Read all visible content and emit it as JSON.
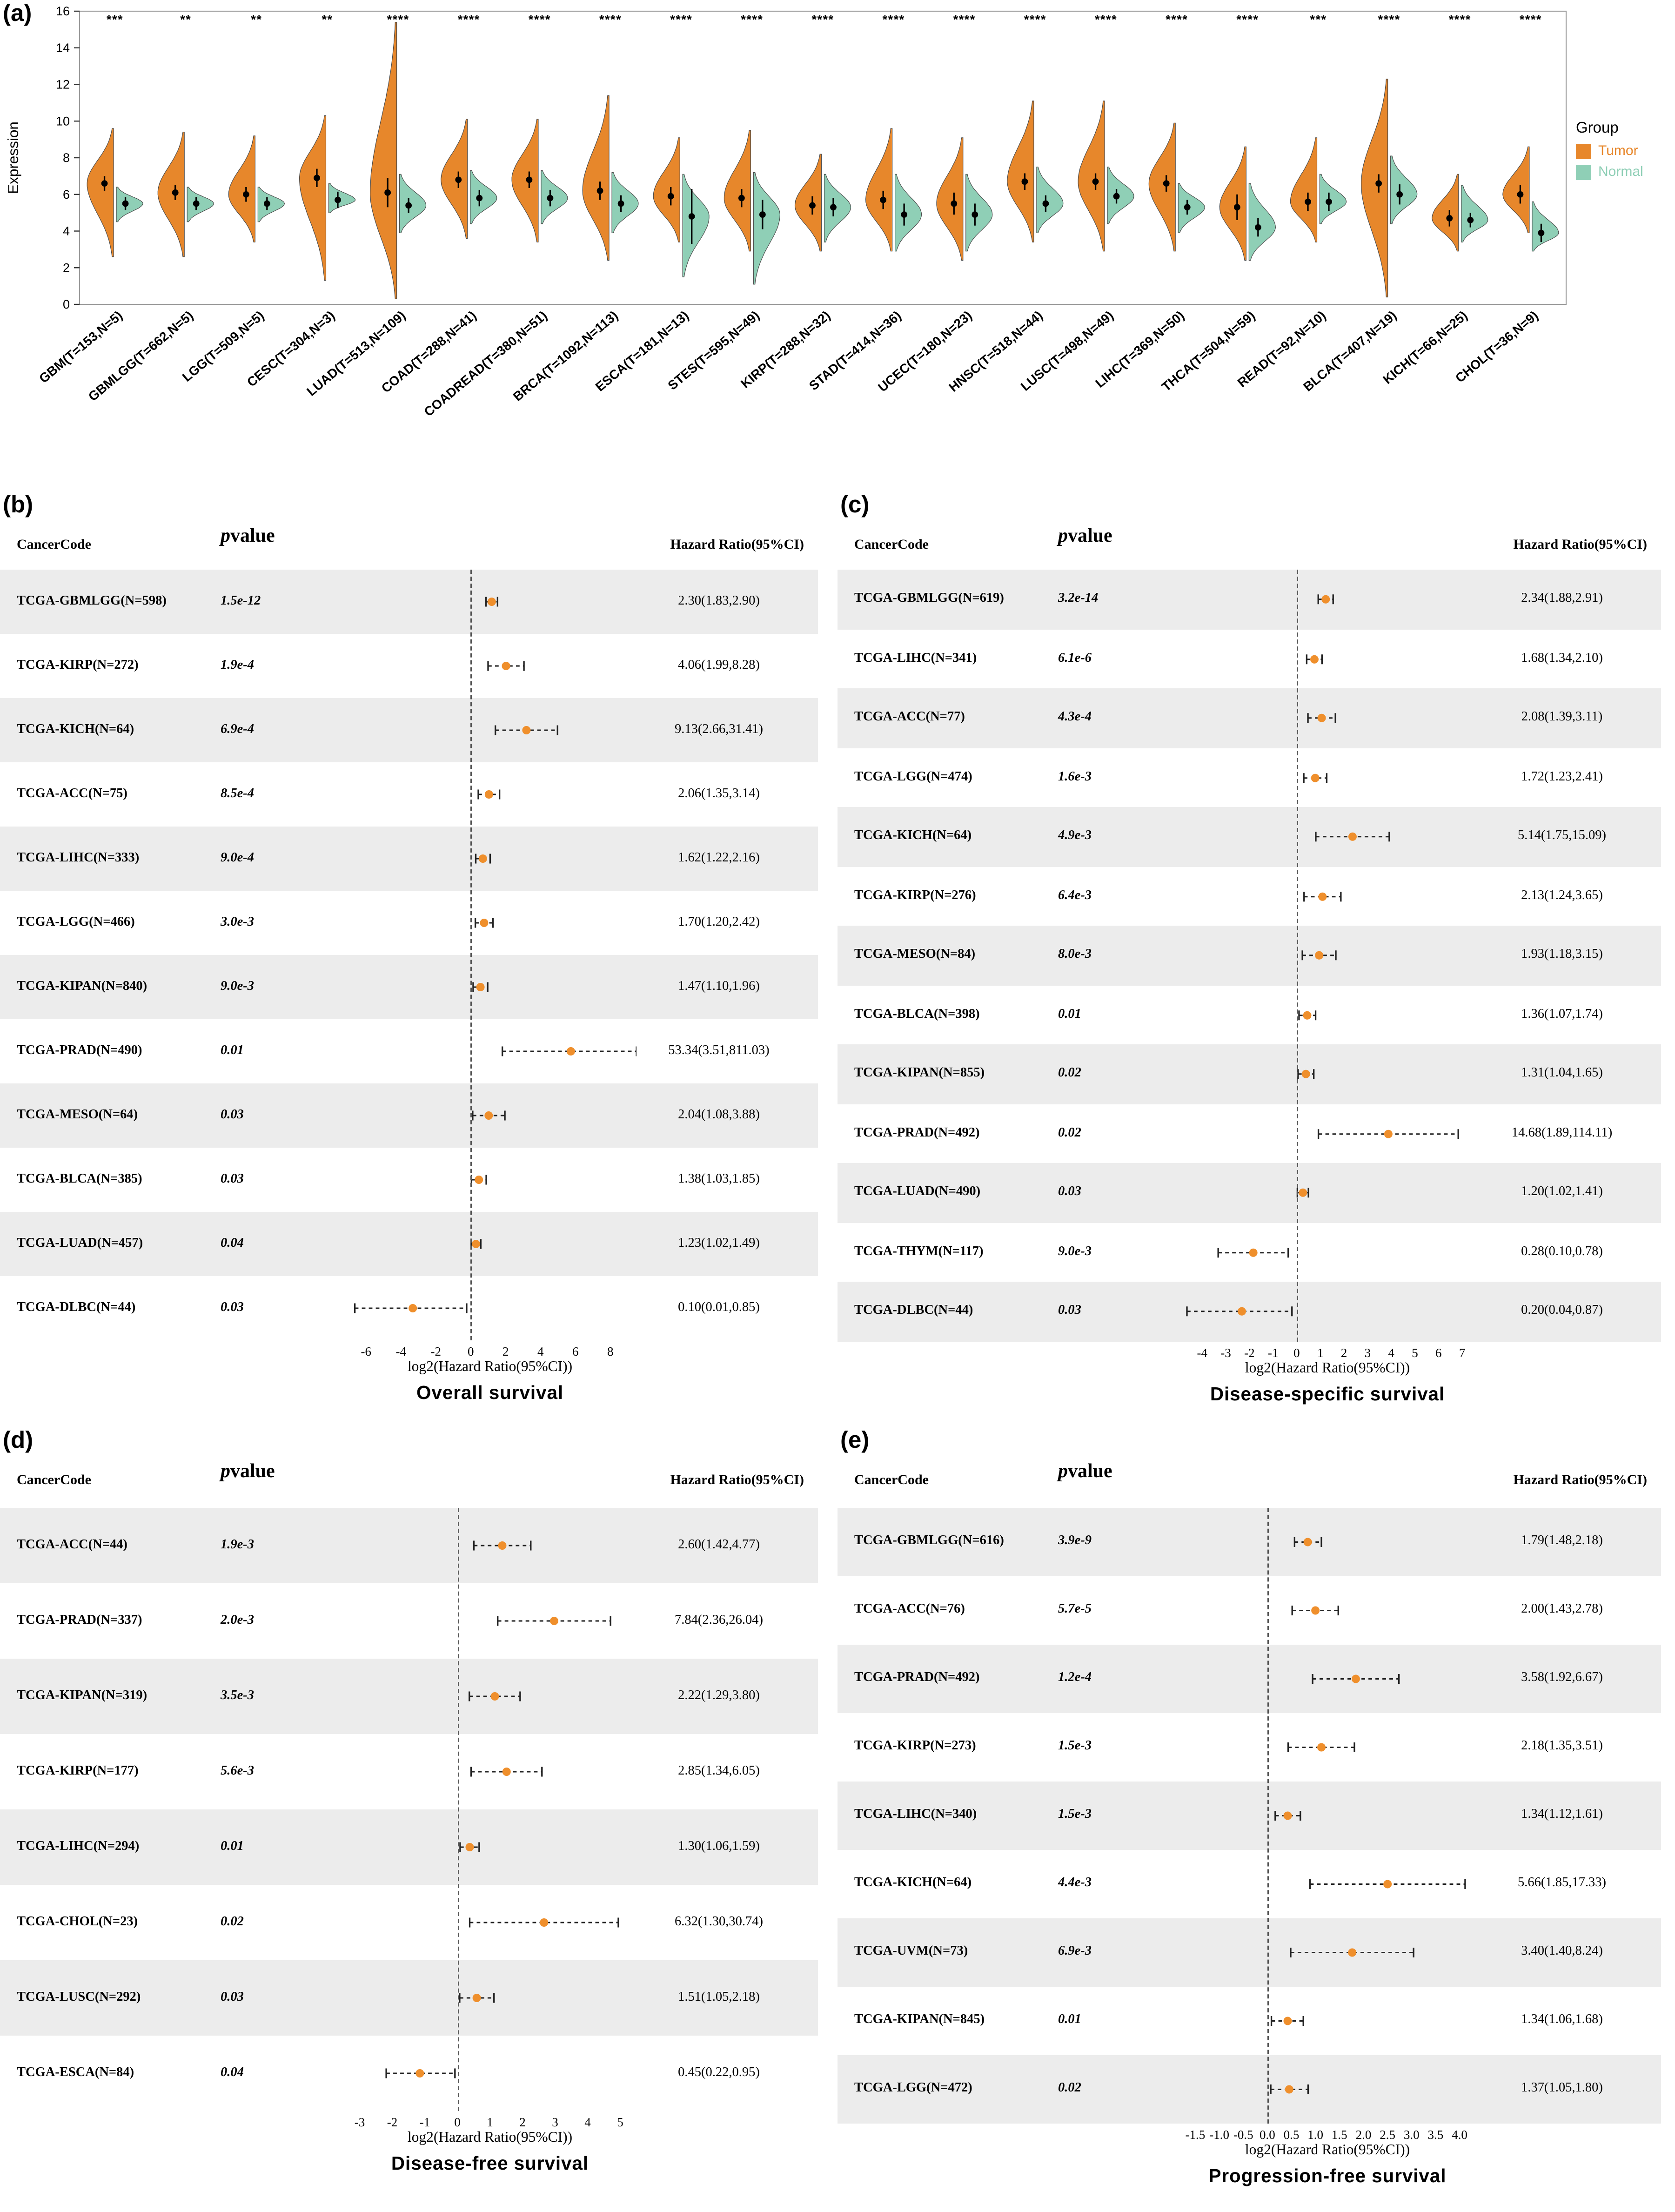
{
  "colors": {
    "tumor": "#E7872B",
    "normal": "#8FCFB6",
    "dot": "#EF8F2C",
    "row_alt": "#ECECEC"
  },
  "chart_data": [
    {
      "type": "violin",
      "panel": "(a)",
      "ylabel": "Expression",
      "ylim": [
        0,
        16
      ],
      "yticks": [
        0,
        2,
        4,
        6,
        8,
        10,
        12,
        14,
        16
      ],
      "legend_title": "Group",
      "legend_position": "right",
      "grid": false,
      "groups": [
        {
          "name": "Tumor",
          "color": "#E7872B"
        },
        {
          "name": "Normal",
          "color": "#8FCFB6"
        }
      ],
      "value_note": "per group arrays are [median, min, max, errbar] of log2 expression",
      "categories": [
        {
          "label": "GBM(T=153,N=5)",
          "sig": "***",
          "tumor": [
            6.6,
            2.6,
            9.6,
            0.4
          ],
          "normal": [
            5.5,
            4.5,
            6.4,
            0.35
          ]
        },
        {
          "label": "GBMLGG(T=662,N=5)",
          "sig": "**",
          "tumor": [
            6.1,
            2.6,
            9.4,
            0.4
          ],
          "normal": [
            5.5,
            4.5,
            6.4,
            0.35
          ]
        },
        {
          "label": "LGG(T=509,N=5)",
          "sig": "**",
          "tumor": [
            6.0,
            3.4,
            9.2,
            0.4
          ],
          "normal": [
            5.5,
            4.5,
            6.4,
            0.35
          ]
        },
        {
          "label": "CESC(T=304,N=3)",
          "sig": "**",
          "tumor": [
            6.9,
            1.3,
            10.3,
            0.5
          ],
          "normal": [
            5.7,
            5.0,
            6.6,
            0.45
          ]
        },
        {
          "label": "LUAD(T=513,N=109)",
          "sig": "****",
          "tumor": [
            6.1,
            0.3,
            15.4,
            0.8
          ],
          "normal": [
            5.4,
            3.9,
            7.1,
            0.4
          ]
        },
        {
          "label": "COAD(T=288,N=41)",
          "sig": "****",
          "tumor": [
            6.8,
            3.6,
            10.1,
            0.45
          ],
          "normal": [
            5.8,
            4.4,
            7.3,
            0.45
          ]
        },
        {
          "label": "COADREAD(T=380,N=51)",
          "sig": "****",
          "tumor": [
            6.8,
            3.4,
            10.1,
            0.45
          ],
          "normal": [
            5.8,
            4.4,
            7.3,
            0.45
          ]
        },
        {
          "label": "BRCA(T=1092,N=113)",
          "sig": "****",
          "tumor": [
            6.2,
            2.4,
            11.4,
            0.5
          ],
          "normal": [
            5.5,
            3.9,
            7.2,
            0.45
          ]
        },
        {
          "label": "ESCA(T=181,N=13)",
          "sig": "****",
          "tumor": [
            5.9,
            3.4,
            9.1,
            0.5
          ],
          "normal": [
            4.8,
            1.5,
            7.1,
            1.5
          ]
        },
        {
          "label": "STES(T=595,N=49)",
          "sig": "****",
          "tumor": [
            5.8,
            2.9,
            9.5,
            0.5
          ],
          "normal": [
            4.9,
            1.1,
            7.2,
            0.8
          ]
        },
        {
          "label": "KIRP(T=288,N=32)",
          "sig": "****",
          "tumor": [
            5.4,
            2.9,
            8.2,
            0.5
          ],
          "normal": [
            5.3,
            3.4,
            7.1,
            0.5
          ]
        },
        {
          "label": "STAD(T=414,N=36)",
          "sig": "****",
          "tumor": [
            5.7,
            2.9,
            9.6,
            0.5
          ],
          "normal": [
            4.9,
            2.9,
            7.1,
            0.6
          ]
        },
        {
          "label": "UCEC(T=180,N=23)",
          "sig": "****",
          "tumor": [
            5.5,
            2.4,
            9.1,
            0.6
          ],
          "normal": [
            4.9,
            2.9,
            7.1,
            0.6
          ]
        },
        {
          "label": "HNSC(T=518,N=44)",
          "sig": "****",
          "tumor": [
            6.7,
            3.4,
            11.1,
            0.45
          ],
          "normal": [
            5.5,
            3.9,
            7.5,
            0.45
          ]
        },
        {
          "label": "LUSC(T=498,N=49)",
          "sig": "****",
          "tumor": [
            6.7,
            2.9,
            11.1,
            0.45
          ],
          "normal": [
            5.9,
            4.4,
            7.5,
            0.4
          ]
        },
        {
          "label": "LIHC(T=369,N=50)",
          "sig": "****",
          "tumor": [
            6.6,
            2.9,
            9.9,
            0.45
          ],
          "normal": [
            5.3,
            3.9,
            6.6,
            0.4
          ]
        },
        {
          "label": "THCA(T=504,N=59)",
          "sig": "****",
          "tumor": [
            5.3,
            2.4,
            8.6,
            0.7
          ],
          "normal": [
            4.2,
            2.4,
            6.6,
            0.5
          ]
        },
        {
          "label": "READ(T=92,N=10)",
          "sig": "***",
          "tumor": [
            5.6,
            3.4,
            9.1,
            0.5
          ],
          "normal": [
            5.6,
            4.4,
            7.1,
            0.5
          ]
        },
        {
          "label": "BLCA(T=407,N=19)",
          "sig": "****",
          "tumor": [
            6.6,
            0.4,
            12.3,
            0.5
          ],
          "normal": [
            6.0,
            4.4,
            8.1,
            0.55
          ]
        },
        {
          "label": "KICH(T=66,N=25)",
          "sig": "****",
          "tumor": [
            4.7,
            2.9,
            7.1,
            0.45
          ],
          "normal": [
            4.6,
            3.4,
            6.5,
            0.4
          ]
        },
        {
          "label": "CHOL(T=36,N=9)",
          "sig": "****",
          "tumor": [
            6.0,
            3.9,
            8.6,
            0.5
          ],
          "normal": [
            3.9,
            2.9,
            5.6,
            0.5
          ]
        }
      ]
    },
    {
      "type": "forest",
      "panel": "(b)",
      "title": "Overall survival",
      "xlabel": "log2(Hazard Ratio(95%CI))",
      "headers": {
        "code": "CancerCode",
        "p": "pvalue",
        "hr": "Hazard Ratio(95%CI)"
      },
      "xdomain": [
        -7.3,
        9.5
      ],
      "xticks": [
        -6,
        -4,
        -2,
        0,
        2,
        4,
        6,
        8
      ],
      "tick_decimals": 0,
      "rows": [
        {
          "code": "TCGA-GBMLGG(N=598)",
          "p": "1.5e-12",
          "hr": 2.3,
          "lo": 1.83,
          "hi": 2.9,
          "hr_text": "2.30(1.83,2.90)"
        },
        {
          "code": "TCGA-KIRP(N=272)",
          "p": "1.9e-4",
          "hr": 4.06,
          "lo": 1.99,
          "hi": 8.28,
          "hr_text": "4.06(1.99,8.28)"
        },
        {
          "code": "TCGA-KICH(N=64)",
          "p": "6.9e-4",
          "hr": 9.13,
          "lo": 2.66,
          "hi": 31.41,
          "hr_text": "9.13(2.66,31.41)"
        },
        {
          "code": "TCGA-ACC(N=75)",
          "p": "8.5e-4",
          "hr": 2.06,
          "lo": 1.35,
          "hi": 3.14,
          "hr_text": "2.06(1.35,3.14)"
        },
        {
          "code": "TCGA-LIHC(N=333)",
          "p": "9.0e-4",
          "hr": 1.62,
          "lo": 1.22,
          "hi": 2.16,
          "hr_text": "1.62(1.22,2.16)"
        },
        {
          "code": "TCGA-LGG(N=466)",
          "p": "3.0e-3",
          "hr": 1.7,
          "lo": 1.2,
          "hi": 2.42,
          "hr_text": "1.70(1.20,2.42)"
        },
        {
          "code": "TCGA-KIPAN(N=840)",
          "p": "9.0e-3",
          "hr": 1.47,
          "lo": 1.1,
          "hi": 1.96,
          "hr_text": "1.47(1.10,1.96)"
        },
        {
          "code": "TCGA-PRAD(N=490)",
          "p": "0.01",
          "hr": 53.34,
          "lo": 3.51,
          "hi": 811.03,
          "hr_text": "53.34(3.51,811.03)"
        },
        {
          "code": "TCGA-MESO(N=64)",
          "p": "0.03",
          "hr": 2.04,
          "lo": 1.08,
          "hi": 3.88,
          "hr_text": "2.04(1.08,3.88)"
        },
        {
          "code": "TCGA-BLCA(N=385)",
          "p": "0.03",
          "hr": 1.38,
          "lo": 1.03,
          "hi": 1.85,
          "hr_text": "1.38(1.03,1.85)"
        },
        {
          "code": "TCGA-LUAD(N=457)",
          "p": "0.04",
          "hr": 1.23,
          "lo": 1.02,
          "hi": 1.49,
          "hr_text": "1.23(1.02,1.49)"
        },
        {
          "code": "TCGA-DLBC(N=44)",
          "p": "0.03",
          "hr": 0.1,
          "lo": 0.01,
          "hi": 0.85,
          "hr_text": "0.10(0.01,0.85)"
        }
      ]
    },
    {
      "type": "forest",
      "panel": "(c)",
      "title": "Disease-specific survival",
      "xlabel": "log2(Hazard Ratio(95%CI))",
      "headers": {
        "code": "CancerCode",
        "p": "pvalue",
        "hr": "Hazard Ratio(95%CI)"
      },
      "xdomain": [
        -4.9,
        7.5
      ],
      "xticks": [
        -4,
        -3,
        -2,
        -1,
        0,
        1,
        2,
        3,
        4,
        5,
        6,
        7
      ],
      "tick_decimals": 0,
      "rows": [
        {
          "code": "TCGA-GBMLGG(N=619)",
          "p": "3.2e-14",
          "hr": 2.34,
          "lo": 1.88,
          "hi": 2.91,
          "hr_text": "2.34(1.88,2.91)"
        },
        {
          "code": "TCGA-LIHC(N=341)",
          "p": "6.1e-6",
          "hr": 1.68,
          "lo": 1.34,
          "hi": 2.1,
          "hr_text": "1.68(1.34,2.10)"
        },
        {
          "code": "TCGA-ACC(N=77)",
          "p": "4.3e-4",
          "hr": 2.08,
          "lo": 1.39,
          "hi": 3.11,
          "hr_text": "2.08(1.39,3.11)"
        },
        {
          "code": "TCGA-LGG(N=474)",
          "p": "1.6e-3",
          "hr": 1.72,
          "lo": 1.23,
          "hi": 2.41,
          "hr_text": "1.72(1.23,2.41)"
        },
        {
          "code": "TCGA-KICH(N=64)",
          "p": "4.9e-3",
          "hr": 5.14,
          "lo": 1.75,
          "hi": 15.09,
          "hr_text": "5.14(1.75,15.09)"
        },
        {
          "code": "TCGA-KIRP(N=276)",
          "p": "6.4e-3",
          "hr": 2.13,
          "lo": 1.24,
          "hi": 3.65,
          "hr_text": "2.13(1.24,3.65)"
        },
        {
          "code": "TCGA-MESO(N=84)",
          "p": "8.0e-3",
          "hr": 1.93,
          "lo": 1.18,
          "hi": 3.15,
          "hr_text": "1.93(1.18,3.15)"
        },
        {
          "code": "TCGA-BLCA(N=398)",
          "p": "0.01",
          "hr": 1.36,
          "lo": 1.07,
          "hi": 1.74,
          "hr_text": "1.36(1.07,1.74)"
        },
        {
          "code": "TCGA-KIPAN(N=855)",
          "p": "0.02",
          "hr": 1.31,
          "lo": 1.04,
          "hi": 1.65,
          "hr_text": "1.31(1.04,1.65)"
        },
        {
          "code": "TCGA-PRAD(N=492)",
          "p": "0.02",
          "hr": 14.68,
          "lo": 1.89,
          "hi": 114.11,
          "hr_text": "14.68(1.89,114.11)"
        },
        {
          "code": "TCGA-LUAD(N=490)",
          "p": "0.03",
          "hr": 1.2,
          "lo": 1.02,
          "hi": 1.41,
          "hr_text": "1.20(1.02,1.41)"
        },
        {
          "code": "TCGA-THYM(N=117)",
          "p": "9.0e-3",
          "hr": 0.28,
          "lo": 0.1,
          "hi": 0.78,
          "hr_text": "0.28(0.10,0.78)"
        },
        {
          "code": "TCGA-DLBC(N=44)",
          "p": "0.03",
          "hr": 0.2,
          "lo": 0.04,
          "hi": 0.87,
          "hr_text": "0.20(0.04,0.87)"
        }
      ]
    },
    {
      "type": "forest",
      "panel": "(d)",
      "title": "Disease-free survival",
      "xlabel": "log2(Hazard Ratio(95%CI))",
      "headers": {
        "code": "CancerCode",
        "p": "pvalue",
        "hr": "Hazard Ratio(95%CI)"
      },
      "xdomain": [
        -3.5,
        5.5
      ],
      "xticks": [
        -3,
        -2,
        -1,
        0,
        1,
        2,
        3,
        4,
        5
      ],
      "tick_decimals": 0,
      "rows": [
        {
          "code": "TCGA-ACC(N=44)",
          "p": "1.9e-3",
          "hr": 2.6,
          "lo": 1.42,
          "hi": 4.77,
          "hr_text": "2.60(1.42,4.77)"
        },
        {
          "code": "TCGA-PRAD(N=337)",
          "p": "2.0e-3",
          "hr": 7.84,
          "lo": 2.36,
          "hi": 26.04,
          "hr_text": "7.84(2.36,26.04)"
        },
        {
          "code": "TCGA-KIPAN(N=319)",
          "p": "3.5e-3",
          "hr": 2.22,
          "lo": 1.29,
          "hi": 3.8,
          "hr_text": "2.22(1.29,3.80)"
        },
        {
          "code": "TCGA-KIRP(N=177)",
          "p": "5.6e-3",
          "hr": 2.85,
          "lo": 1.34,
          "hi": 6.05,
          "hr_text": "2.85(1.34,6.05)"
        },
        {
          "code": "TCGA-LIHC(N=294)",
          "p": "0.01",
          "hr": 1.3,
          "lo": 1.06,
          "hi": 1.59,
          "hr_text": "1.30(1.06,1.59)"
        },
        {
          "code": "TCGA-CHOL(N=23)",
          "p": "0.02",
          "hr": 6.32,
          "lo": 1.3,
          "hi": 30.74,
          "hr_text": "6.32(1.30,30.74)"
        },
        {
          "code": "TCGA-LUSC(N=292)",
          "p": "0.03",
          "hr": 1.51,
          "lo": 1.05,
          "hi": 2.18,
          "hr_text": "1.51(1.05,2.18)"
        },
        {
          "code": "TCGA-ESCA(N=84)",
          "p": "0.04",
          "hr": 0.45,
          "lo": 0.22,
          "hi": 0.95,
          "hr_text": "0.45(0.22,0.95)"
        }
      ]
    },
    {
      "type": "forest",
      "panel": "(e)",
      "title": "Progression-free survival",
      "xlabel": "log2(Hazard Ratio(95%CI))",
      "headers": {
        "code": "CancerCode",
        "p": "pvalue",
        "hr": "Hazard Ratio(95%CI)"
      },
      "xdomain": [
        -1.8,
        4.3
      ],
      "xticks": [
        -1.5,
        -1.0,
        -0.5,
        0.0,
        0.5,
        1.0,
        1.5,
        2.0,
        2.5,
        3.0,
        3.5,
        4.0
      ],
      "tick_decimals": 1,
      "rows": [
        {
          "code": "TCGA-GBMLGG(N=616)",
          "p": "3.9e-9",
          "hr": 1.79,
          "lo": 1.48,
          "hi": 2.18,
          "hr_text": "1.79(1.48,2.18)"
        },
        {
          "code": "TCGA-ACC(N=76)",
          "p": "5.7e-5",
          "hr": 2.0,
          "lo": 1.43,
          "hi": 2.78,
          "hr_text": "2.00(1.43,2.78)"
        },
        {
          "code": "TCGA-PRAD(N=492)",
          "p": "1.2e-4",
          "hr": 3.58,
          "lo": 1.92,
          "hi": 6.67,
          "hr_text": "3.58(1.92,6.67)"
        },
        {
          "code": "TCGA-KIRP(N=273)",
          "p": "1.5e-3",
          "hr": 2.18,
          "lo": 1.35,
          "hi": 3.51,
          "hr_text": "2.18(1.35,3.51)"
        },
        {
          "code": "TCGA-LIHC(N=340)",
          "p": "1.5e-3",
          "hr": 1.34,
          "lo": 1.12,
          "hi": 1.61,
          "hr_text": "1.34(1.12,1.61)"
        },
        {
          "code": "TCGA-KICH(N=64)",
          "p": "4.4e-3",
          "hr": 5.66,
          "lo": 1.85,
          "hi": 17.33,
          "hr_text": "5.66(1.85,17.33)"
        },
        {
          "code": "TCGA-UVM(N=73)",
          "p": "6.9e-3",
          "hr": 3.4,
          "lo": 1.4,
          "hi": 8.24,
          "hr_text": "3.40(1.40,8.24)"
        },
        {
          "code": "TCGA-KIPAN(N=845)",
          "p": "0.01",
          "hr": 1.34,
          "lo": 1.06,
          "hi": 1.68,
          "hr_text": "1.34(1.06,1.68)"
        },
        {
          "code": "TCGA-LGG(N=472)",
          "p": "0.02",
          "hr": 1.37,
          "lo": 1.05,
          "hi": 1.8,
          "hr_text": "1.37(1.05,1.80)"
        }
      ]
    }
  ]
}
